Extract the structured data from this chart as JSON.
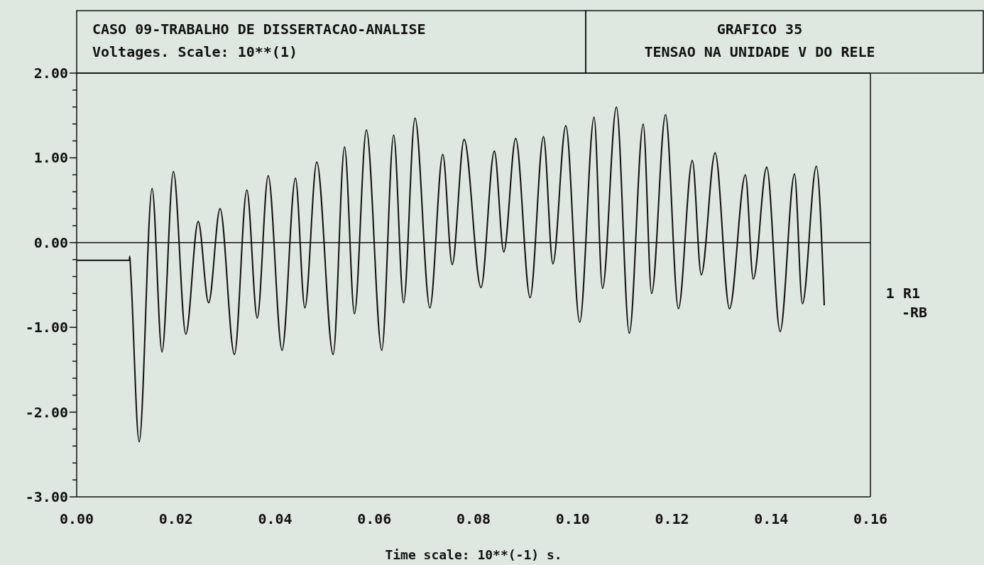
{
  "chart_data": {
    "type": "line",
    "title": "CASO 09-TRABALHO DE DISSERTACAO-ANALISE",
    "subtitle": "Voltages. Scale: 10**(1)",
    "annotations": [
      "GRAFICO 35",
      "TENSAO NA UNIDADE V DO RELE"
    ],
    "xlabel": "Time scale: 10**(-1) s.",
    "xlim": [
      0,
      0.16
    ],
    "xticks": [
      {
        "value": 0,
        "label": "0.00"
      },
      {
        "value": 0.02,
        "label": "0.02"
      },
      {
        "value": 0.04,
        "label": "0.04"
      },
      {
        "value": 0.06,
        "label": "0.06"
      },
      {
        "value": 0.08,
        "label": "0.08"
      },
      {
        "value": 0.1,
        "label": "0.10"
      },
      {
        "value": 0.12,
        "label": "0.12"
      },
      {
        "value": 0.14,
        "label": "0.14"
      },
      {
        "value": 0.16,
        "label": "0.16"
      }
    ],
    "ylim": [
      -3,
      2
    ],
    "yticks": [
      {
        "value": 2,
        "label": "2.00"
      },
      {
        "value": 1.8,
        "label": null
      },
      {
        "value": 1.6,
        "label": null
      },
      {
        "value": 1.4,
        "label": null
      },
      {
        "value": 1.2,
        "label": null
      },
      {
        "value": 1,
        "label": "1.00"
      },
      {
        "value": 0.8,
        "label": null
      },
      {
        "value": 0.6,
        "label": null
      },
      {
        "value": 0.4,
        "label": null
      },
      {
        "value": 0.2,
        "label": null
      },
      {
        "value": 0,
        "label": "0.00"
      },
      {
        "value": -0.2,
        "label": null
      },
      {
        "value": -0.4,
        "label": null
      },
      {
        "value": -0.6,
        "label": null
      },
      {
        "value": -0.8,
        "label": null
      },
      {
        "value": -1,
        "label": "-1.00"
      },
      {
        "value": -1.2,
        "label": null
      },
      {
        "value": -1.4,
        "label": null
      },
      {
        "value": -1.6,
        "label": null
      },
      {
        "value": -1.8,
        "label": null
      },
      {
        "value": -2,
        "label": "-2.00"
      },
      {
        "value": -2.2,
        "label": null
      },
      {
        "value": -2.4,
        "label": null
      },
      {
        "value": -2.6,
        "label": null
      },
      {
        "value": -2.8,
        "label": null
      },
      {
        "value": -3,
        "label": "-3.00"
      }
    ],
    "grid": false,
    "legend": "right",
    "ref_lines": [
      {
        "axis": "y",
        "value": 0,
        "color": "#111111"
      }
    ],
    "series": [
      {
        "name": "1 R1 -RB",
        "color": "#111111",
        "x": [
          0,
          0.0106,
          0.0107,
          0.0109,
          0.0126,
          0.0152,
          0.0172,
          0.0195,
          0.022,
          0.0245,
          0.0266,
          0.0289,
          0.0318,
          0.0343,
          0.0364,
          0.0386,
          0.0414,
          0.0441,
          0.046,
          0.0484,
          0.0517,
          0.054,
          0.056,
          0.0584,
          0.0615,
          0.0639,
          0.0659,
          0.0682,
          0.0712,
          0.0738,
          0.0757,
          0.0781,
          0.0815,
          0.0842,
          0.0861,
          0.0885,
          0.0914,
          0.0941,
          0.096,
          0.0986,
          0.1014,
          0.1043,
          0.106,
          0.1088,
          0.1114,
          0.1142,
          0.1159,
          0.1187,
          0.1213,
          0.1241,
          0.1259,
          0.1287,
          0.1316,
          0.1348,
          0.1364,
          0.1391,
          0.1418,
          0.1447,
          0.1463,
          0.1491,
          0.1507
        ],
        "values": [
          -0.21,
          -0.21,
          -0.16,
          -0.35,
          -2.35,
          0.64,
          -1.29,
          0.84,
          -1.08,
          0.25,
          -0.71,
          0.4,
          -1.32,
          0.62,
          -0.89,
          0.79,
          -1.27,
          0.76,
          -0.77,
          0.95,
          -1.32,
          1.13,
          -0.84,
          1.33,
          -1.27,
          1.27,
          -0.71,
          1.47,
          -0.77,
          1.04,
          -0.26,
          1.22,
          -0.53,
          1.08,
          -0.11,
          1.23,
          -0.65,
          1.25,
          -0.25,
          1.38,
          -0.94,
          1.48,
          -0.54,
          1.6,
          -1.07,
          1.4,
          -0.6,
          1.51,
          -0.78,
          0.97,
          -0.38,
          1.06,
          -0.78,
          0.8,
          -0.43,
          0.89,
          -1.05,
          0.81,
          -0.72,
          0.9,
          -0.74
        ]
      }
    ]
  }
}
